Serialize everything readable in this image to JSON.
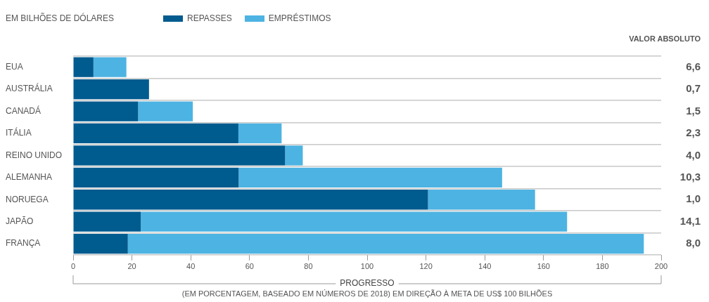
{
  "chart_data": {
    "type": "bar",
    "orientation": "horizontal",
    "stacked": true,
    "subtitle": "EM BILHÕES DE DÓLARES",
    "xlabel": "PROGRESSO",
    "categories": [
      "EUA",
      "AUSTRÁLIA",
      "CANADÁ",
      "ITÁLIA",
      "REINO UNIDO",
      "ALEMANHA",
      "NORUEGA",
      "JAPÃO",
      "FRANÇA"
    ],
    "series": [
      {
        "name": "REPASSES",
        "color": "#005b8f",
        "values": [
          6.9,
          25.8,
          22.1,
          56.2,
          72.1,
          56.3,
          120.7,
          23.0,
          18.6
        ]
      },
      {
        "name": "EMPRÉSTIMOS",
        "color": "#4db3e2",
        "values": [
          11.2,
          0,
          18.6,
          14.7,
          6.0,
          89.6,
          36.4,
          145.0,
          175.5
        ]
      }
    ],
    "xlim": [
      0,
      200
    ],
    "xticks": [
      0,
      20,
      40,
      60,
      80,
      100,
      120,
      140,
      160,
      180,
      200
    ],
    "grid": "y",
    "legend": "top left",
    "annotations": [
      "VALOR ABSOLUTO",
      "(EM PORCENTAGEM, BASEADO EM NÚMEROS DE 2018) EM DIREÇÃO À META DE US$ 100 BILHÕES",
      "6,6",
      "0,7",
      "1,5",
      "2,3",
      "4,0",
      "10,3",
      "1,0",
      "14,1",
      "8,0"
    ]
  }
}
